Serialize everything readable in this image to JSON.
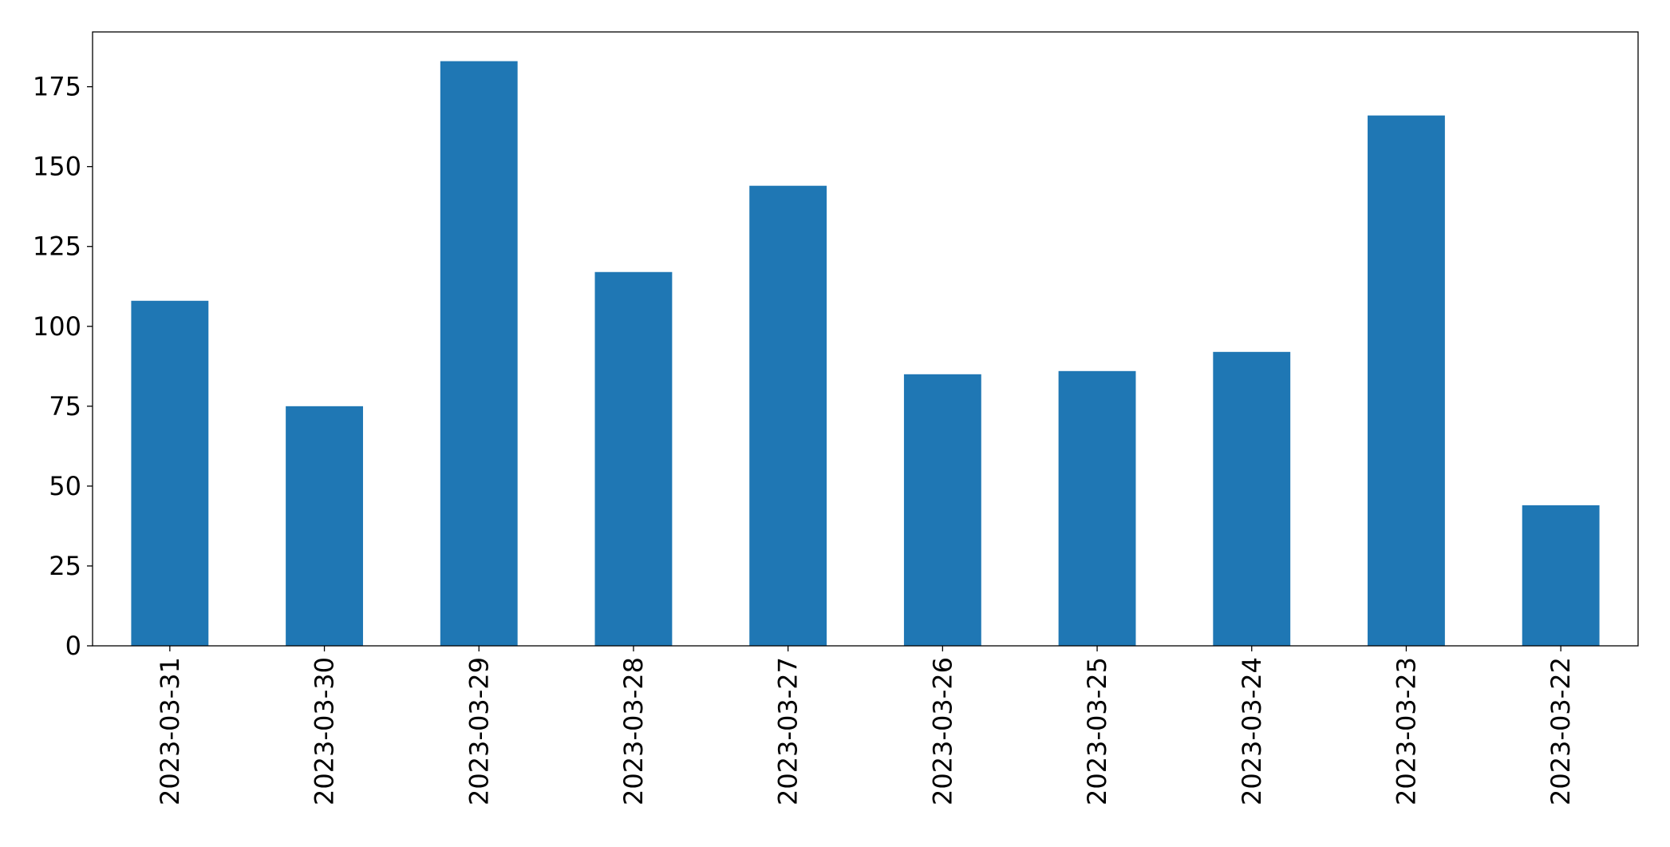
{
  "chart_data": {
    "type": "bar",
    "categories": [
      "2023-03-31",
      "2023-03-30",
      "2023-03-29",
      "2023-03-28",
      "2023-03-27",
      "2023-03-26",
      "2023-03-25",
      "2023-03-24",
      "2023-03-23",
      "2023-03-22"
    ],
    "values": [
      108,
      75,
      183,
      117,
      144,
      85,
      86,
      92,
      166,
      44
    ],
    "color": "#1f77b4",
    "ylim": [
      0,
      192.15
    ],
    "yticks": [
      0,
      25,
      50,
      75,
      100,
      125,
      150,
      175
    ],
    "grid": false
  }
}
